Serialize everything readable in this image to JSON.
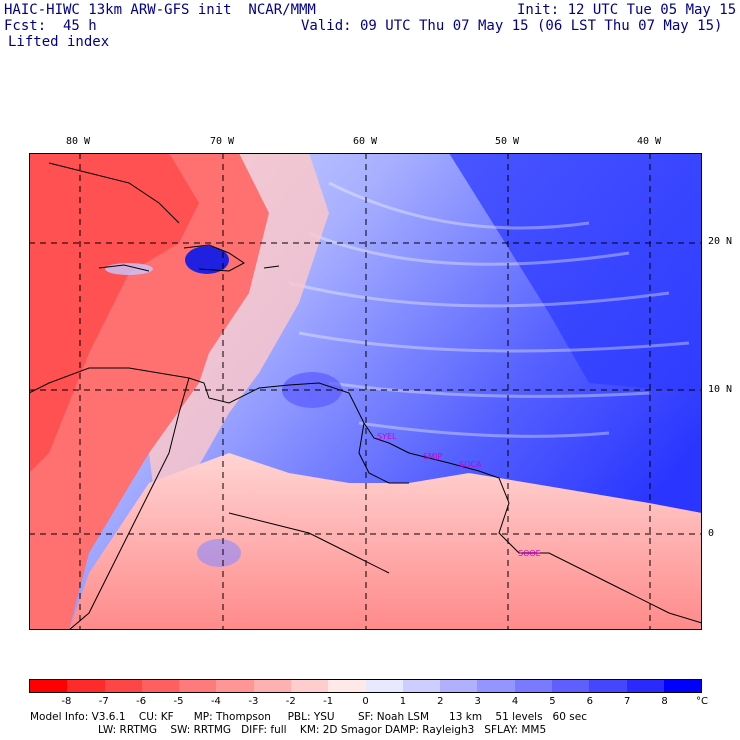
{
  "header": {
    "title": "HAIC-HIWC 13km ARW-GFS init  NCAR/MMM",
    "init": "Init: 12 UTC Tue 05 May 15",
    "fcst": "Fcst:  45 h",
    "valid": "Valid: 09 UTC Thu 07 May 15 (06 LST Thu 07 May 15)",
    "field": "Lifted index"
  },
  "map": {
    "lon_labels": [
      "80 W",
      "70 W",
      "60 W",
      "50 W",
      "40 W"
    ],
    "lat_labels": [
      "20 N",
      "10 N",
      "0"
    ],
    "stations": [
      "SYEL",
      "SMJP",
      "SOCA",
      "SOOE"
    ]
  },
  "colorbar": {
    "unit": "°C",
    "ticks": [
      "-8",
      "-7",
      "-6",
      "-5",
      "-4",
      "-3",
      "-2",
      "-1",
      "0",
      "1",
      "2",
      "3",
      "4",
      "5",
      "6",
      "7",
      "8"
    ],
    "colors": [
      "#ff0000",
      "#ff2a2a",
      "#ff4646",
      "#ff5f5f",
      "#ff7a7a",
      "#ff9595",
      "#ffb0b0",
      "#ffcdcd",
      "#ffe8e8",
      "#e8e8ff",
      "#cdcdff",
      "#b0b0ff",
      "#9595ff",
      "#7a7aff",
      "#5f5fff",
      "#4646ff",
      "#2a2aff",
      "#0000ff"
    ]
  },
  "footer": {
    "line1": "Model Info: V3.6.1    CU: KF      MP: Thompson     PBL: YSU       SF: Noah LSM      13 km    51 levels   60 sec",
    "line2": "LW: RRTMG    SW: RRTMG   DIFF: full    KM: 2D Smagor DAMP: Rayleigh3   SFLAY: MM5"
  }
}
